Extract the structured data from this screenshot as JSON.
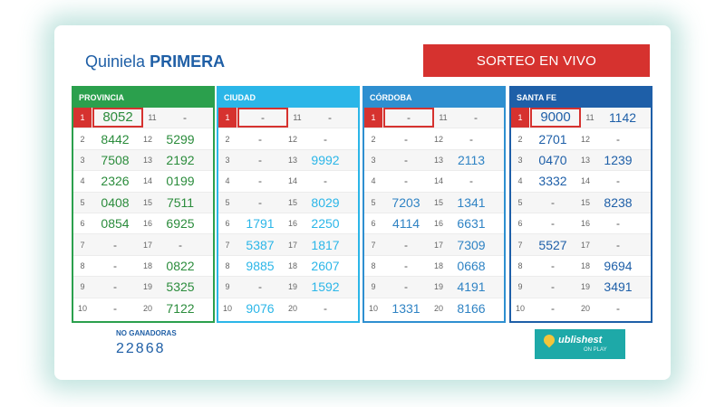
{
  "header": {
    "brand_prefix": "Quiniela",
    "brand_name": "PRIMERA",
    "live_button": "SORTEO EN VIVO"
  },
  "panels": [
    {
      "name": "PROVINCIA",
      "rows": [
        [
          "1",
          "8052",
          "11",
          "-"
        ],
        [
          "2",
          "8442",
          "12",
          "5299"
        ],
        [
          "3",
          "7508",
          "13",
          "2192"
        ],
        [
          "4",
          "2326",
          "14",
          "0199"
        ],
        [
          "5",
          "0408",
          "15",
          "7511"
        ],
        [
          "6",
          "0854",
          "16",
          "6925"
        ],
        [
          "7",
          "-",
          "17",
          "-"
        ],
        [
          "8",
          "-",
          "18",
          "0822"
        ],
        [
          "9",
          "-",
          "19",
          "5325"
        ],
        [
          "10",
          "-",
          "20",
          "7122"
        ]
      ]
    },
    {
      "name": "CIUDAD",
      "rows": [
        [
          "1",
          "-",
          "11",
          "-"
        ],
        [
          "2",
          "-",
          "12",
          "-"
        ],
        [
          "3",
          "-",
          "13",
          "9992"
        ],
        [
          "4",
          "-",
          "14",
          "-"
        ],
        [
          "5",
          "-",
          "15",
          "8029"
        ],
        [
          "6",
          "1791",
          "16",
          "2250"
        ],
        [
          "7",
          "5387",
          "17",
          "1817"
        ],
        [
          "8",
          "9885",
          "18",
          "2607"
        ],
        [
          "9",
          "-",
          "19",
          "1592"
        ],
        [
          "10",
          "9076",
          "20",
          "-"
        ]
      ]
    },
    {
      "name": "CÓRDOBA",
      "rows": [
        [
          "1",
          "-",
          "11",
          "-"
        ],
        [
          "2",
          "-",
          "12",
          "-"
        ],
        [
          "3",
          "-",
          "13",
          "2113"
        ],
        [
          "4",
          "-",
          "14",
          "-"
        ],
        [
          "5",
          "7203",
          "15",
          "1341"
        ],
        [
          "6",
          "4114",
          "16",
          "6631"
        ],
        [
          "7",
          "-",
          "17",
          "7309"
        ],
        [
          "8",
          "-",
          "18",
          "0668"
        ],
        [
          "9",
          "-",
          "19",
          "4191"
        ],
        [
          "10",
          "1331",
          "20",
          "8166"
        ]
      ]
    },
    {
      "name": "SANTA FE",
      "rows": [
        [
          "1",
          "9000",
          "11",
          "1142"
        ],
        [
          "2",
          "2701",
          "12",
          "-"
        ],
        [
          "3",
          "0470",
          "13",
          "1239"
        ],
        [
          "4",
          "3332",
          "14",
          "-"
        ],
        [
          "5",
          "-",
          "15",
          "8238"
        ],
        [
          "6",
          "-",
          "16",
          "-"
        ],
        [
          "7",
          "5527",
          "17",
          "-"
        ],
        [
          "8",
          "-",
          "18",
          "9694"
        ],
        [
          "9",
          "-",
          "19",
          "3491"
        ],
        [
          "10",
          "-",
          "20",
          "-"
        ]
      ]
    }
  ],
  "no_ganadoras": {
    "label": "NO GANADORAS",
    "value": "22868"
  },
  "logo": {
    "text": "ublishest",
    "sub": "ON PLAY"
  }
}
